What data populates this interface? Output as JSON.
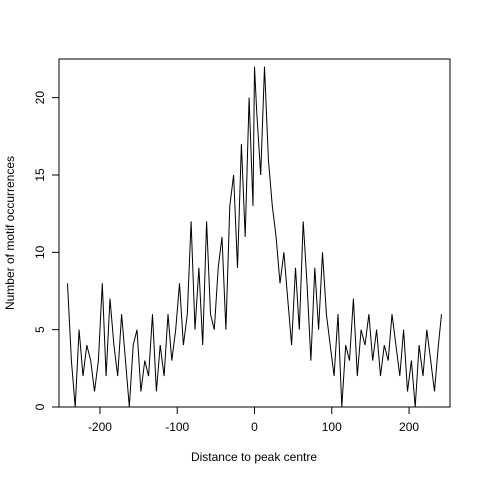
{
  "chart_data": {
    "type": "line",
    "title": "",
    "xlabel": "Distance to peak centre",
    "ylabel": "Number of motif occurrences",
    "xlim": [
      -253,
      253
    ],
    "ylim": [
      0,
      22.5
    ],
    "x_ticks": [
      -200,
      -100,
      0,
      100,
      200
    ],
    "x_tick_labels": [
      "-200",
      "-100",
      "0",
      "100",
      "200"
    ],
    "y_ticks": [
      0,
      5,
      10,
      15,
      20
    ],
    "y_tick_labels": [
      "0",
      "5",
      "10",
      "15",
      "20"
    ],
    "grid": false,
    "legend": "none",
    "line_color": "#000000",
    "x": [
      -242,
      -237,
      -232,
      -227,
      -222,
      -217,
      -212,
      -207,
      -202,
      -197,
      -192,
      -187,
      -182,
      -177,
      -172,
      -167,
      -162,
      -157,
      -152,
      -147,
      -142,
      -137,
      -132,
      -127,
      -122,
      -117,
      -112,
      -107,
      -102,
      -97,
      -92,
      -87,
      -82,
      -77,
      -72,
      -67,
      -62,
      -57,
      -52,
      -47,
      -42,
      -37,
      -32,
      -27,
      -22,
      -17,
      -12,
      -7,
      -2,
      0,
      3,
      8,
      13,
      18,
      23,
      28,
      33,
      38,
      43,
      48,
      53,
      58,
      63,
      68,
      73,
      78,
      83,
      88,
      93,
      98,
      103,
      108,
      113,
      118,
      123,
      128,
      133,
      138,
      143,
      148,
      153,
      158,
      163,
      168,
      173,
      178,
      183,
      188,
      193,
      198,
      203,
      208,
      213,
      218,
      223,
      228,
      233,
      238,
      242
    ],
    "values": [
      8,
      3,
      0,
      5,
      2,
      4,
      3,
      1,
      3,
      8,
      2,
      7,
      4,
      2,
      6,
      3,
      0,
      4,
      5,
      1,
      3,
      2,
      6,
      1,
      4,
      2,
      6,
      3,
      5,
      8,
      4,
      6,
      12,
      5,
      9,
      4,
      12,
      6,
      5,
      9,
      11,
      5,
      13,
      15,
      9,
      17,
      11,
      20,
      13,
      22,
      19,
      15,
      22,
      16,
      13,
      11,
      8,
      10,
      7,
      4,
      9,
      5,
      12,
      8,
      3,
      9,
      5,
      10,
      6,
      4,
      2,
      6,
      0,
      4,
      3,
      7,
      2,
      5,
      4,
      6,
      3,
      5,
      2,
      4,
      3,
      6,
      4,
      2,
      5,
      1,
      3,
      0,
      4,
      2,
      5,
      3,
      1,
      4,
      6
    ]
  }
}
